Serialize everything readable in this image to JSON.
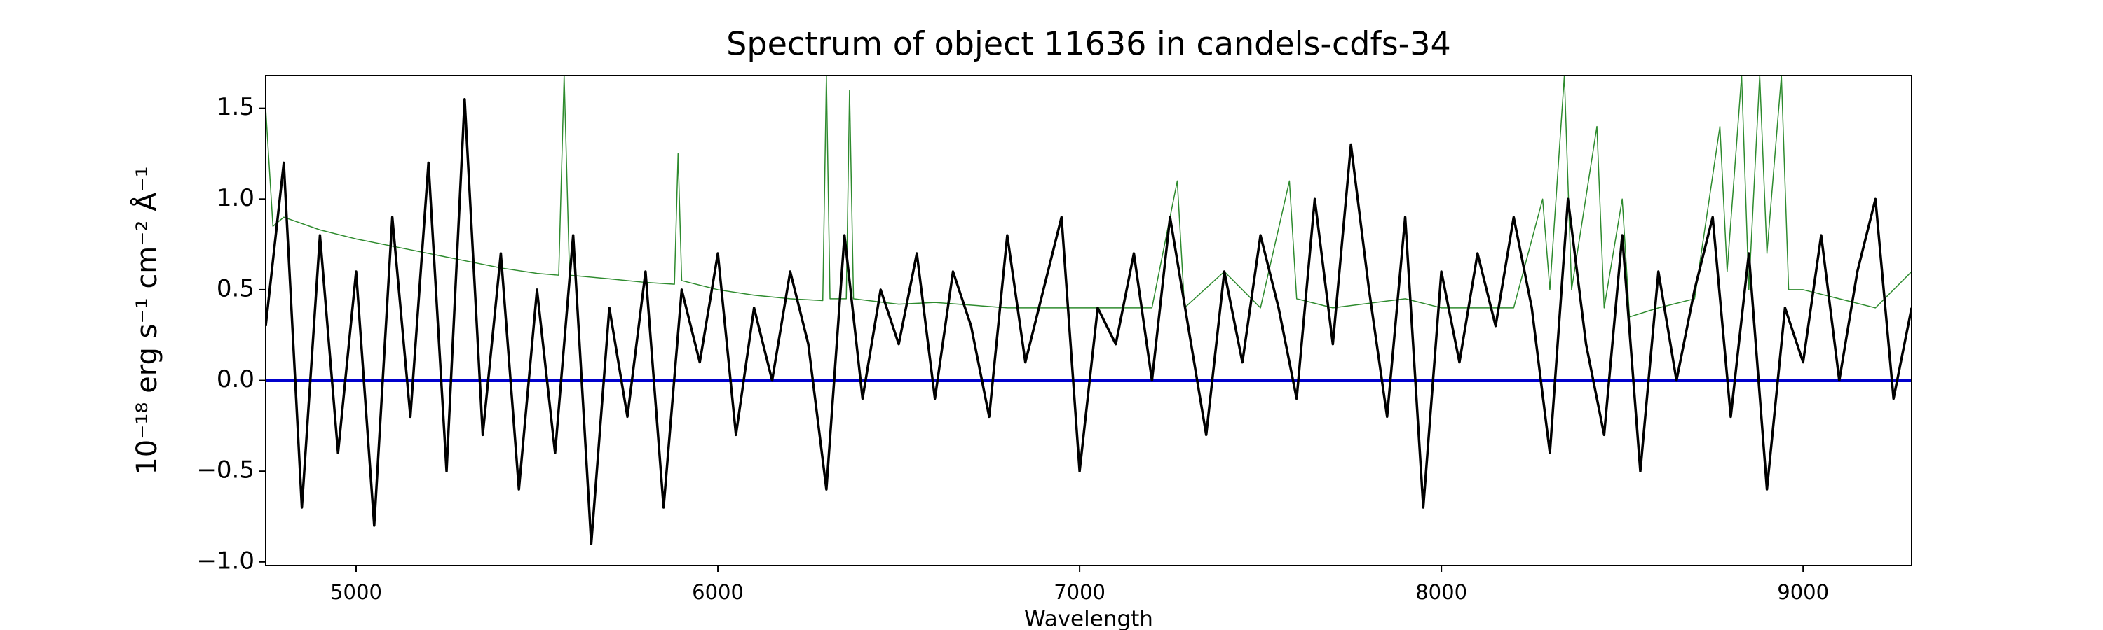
{
  "chart_data": {
    "type": "line",
    "title": "Spectrum of object 11636 in candels-cdfs-34",
    "x_label": "Wavelength",
    "y_label": "10⁻¹⁸ erg s⁻¹ cm⁻² Å⁻¹",
    "xlim": [
      4750,
      9300
    ],
    "ylim": [
      -1.02,
      1.68
    ],
    "xticks": [
      5000,
      6000,
      7000,
      8000,
      9000
    ],
    "yticks": [
      {
        "value": -1.0,
        "label": "−1.0"
      },
      {
        "value": -0.5,
        "label": "−0.5"
      },
      {
        "value": 0.0,
        "label": "0.0"
      },
      {
        "value": 0.5,
        "label": "0.5"
      },
      {
        "value": 1.0,
        "label": "1.0"
      },
      {
        "value": 1.5,
        "label": "1.5"
      }
    ],
    "grid": false,
    "series": [
      {
        "color": "#2e8b2e",
        "width": 1.5,
        "x": [
          4750,
          4770,
          4800,
          4900,
          5000,
          5100,
          5200,
          5300,
          5400,
          5500,
          5560,
          5575,
          5590,
          5700,
          5800,
          5880,
          5890,
          5900,
          6000,
          6100,
          6200,
          6290,
          6300,
          6310,
          6355,
          6364,
          6375,
          6500,
          6600,
          6800,
          7000,
          7200,
          7270,
          7290,
          7400,
          7500,
          7580,
          7600,
          7700,
          7900,
          8000,
          8200,
          8280,
          8300,
          8340,
          8360,
          8430,
          8450,
          8500,
          8520,
          8600,
          8700,
          8770,
          8790,
          8830,
          8850,
          8880,
          8900,
          8940,
          8960,
          9000,
          9100,
          9200,
          9300
        ],
        "values": [
          1.5,
          0.85,
          0.9,
          0.83,
          0.78,
          0.74,
          0.7,
          0.66,
          0.62,
          0.59,
          0.58,
          1.68,
          0.58,
          0.56,
          0.54,
          0.53,
          1.25,
          0.55,
          0.5,
          0.47,
          0.45,
          0.44,
          1.68,
          0.45,
          0.45,
          1.6,
          0.45,
          0.42,
          0.43,
          0.4,
          0.4,
          0.4,
          1.1,
          0.4,
          0.6,
          0.4,
          1.1,
          0.45,
          0.4,
          0.45,
          0.4,
          0.4,
          1.0,
          0.5,
          1.68,
          0.5,
          1.4,
          0.4,
          1.0,
          0.35,
          0.4,
          0.45,
          1.4,
          0.6,
          1.68,
          0.5,
          1.68,
          0.7,
          1.68,
          0.5,
          0.5,
          0.45,
          0.4,
          0.6
        ]
      },
      {
        "color": "#0000cd",
        "width": 5,
        "x": [
          4750,
          9300
        ],
        "values": [
          0.0,
          0.0
        ]
      },
      {
        "color": "#000000",
        "width": 3.5,
        "x": [
          4750,
          4800,
          4850,
          4900,
          4950,
          5000,
          5050,
          5100,
          5150,
          5200,
          5250,
          5300,
          5350,
          5400,
          5450,
          5500,
          5550,
          5600,
          5650,
          5700,
          5750,
          5800,
          5850,
          5900,
          5950,
          6000,
          6050,
          6100,
          6150,
          6200,
          6250,
          6300,
          6350,
          6400,
          6450,
          6500,
          6550,
          6600,
          6650,
          6700,
          6750,
          6800,
          6850,
          6900,
          6950,
          7000,
          7050,
          7100,
          7150,
          7200,
          7250,
          7300,
          7350,
          7400,
          7450,
          7500,
          7550,
          7600,
          7650,
          7700,
          7750,
          7800,
          7850,
          7900,
          7950,
          8000,
          8050,
          8100,
          8150,
          8200,
          8250,
          8300,
          8350,
          8400,
          8450,
          8500,
          8550,
          8600,
          8650,
          8700,
          8750,
          8800,
          8850,
          8900,
          8950,
          9000,
          9050,
          9100,
          9150,
          9200,
          9250,
          9300
        ],
        "values": [
          0.3,
          1.2,
          -0.7,
          0.8,
          -0.4,
          0.6,
          -0.8,
          0.9,
          -0.2,
          1.2,
          -0.5,
          1.55,
          -0.3,
          0.7,
          -0.6,
          0.5,
          -0.4,
          0.8,
          -0.9,
          0.4,
          -0.2,
          0.6,
          -0.7,
          0.5,
          0.1,
          0.7,
          -0.3,
          0.4,
          0.0,
          0.6,
          0.2,
          -0.6,
          0.8,
          -0.1,
          0.5,
          0.2,
          0.7,
          -0.1,
          0.6,
          0.3,
          -0.2,
          0.8,
          0.1,
          0.5,
          0.9,
          -0.5,
          0.4,
          0.2,
          0.7,
          0.0,
          0.9,
          0.3,
          -0.3,
          0.6,
          0.1,
          0.8,
          0.4,
          -0.1,
          1.0,
          0.2,
          1.3,
          0.5,
          -0.2,
          0.9,
          -0.7,
          0.6,
          0.1,
          0.7,
          0.3,
          0.9,
          0.4,
          -0.4,
          1.0,
          0.2,
          -0.3,
          0.8,
          -0.5,
          0.6,
          0.0,
          0.5,
          0.9,
          -0.2,
          0.7,
          -0.6,
          0.4,
          0.1,
          0.8,
          0.0,
          0.6,
          1.0,
          -0.1,
          0.4
        ]
      }
    ]
  }
}
